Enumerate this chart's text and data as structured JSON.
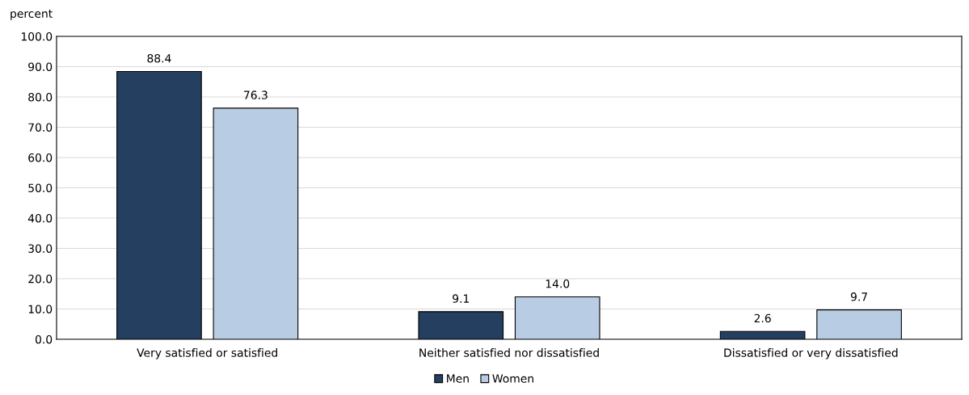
{
  "chart_data": {
    "type": "bar",
    "ylabel": "percent",
    "categories": [
      "Very satisfied or satisfied",
      "Neither satisfied nor dissatisfied",
      "Dissatisfied or very dissatisfied"
    ],
    "series": [
      {
        "name": "Men",
        "color": "#243f60",
        "values": [
          88.4,
          9.1,
          2.6
        ],
        "value_labels": [
          "88.4",
          "9.1",
          "2.6"
        ]
      },
      {
        "name": "Women",
        "color": "#b8cce4",
        "values": [
          76.3,
          14.0,
          9.7
        ],
        "value_labels": [
          "76.3",
          "14.0",
          "9.7"
        ]
      }
    ],
    "ylim": [
      0,
      100
    ],
    "yticks": [
      {
        "value": 0,
        "label": "0.0"
      },
      {
        "value": 10,
        "label": "10.0"
      },
      {
        "value": 20,
        "label": "20.0"
      },
      {
        "value": 30,
        "label": "30.0"
      },
      {
        "value": 40,
        "label": "40.0"
      },
      {
        "value": 50,
        "label": "50.0"
      },
      {
        "value": 60,
        "label": "60.0"
      },
      {
        "value": 70,
        "label": "70.0"
      },
      {
        "value": 80,
        "label": "80.0"
      },
      {
        "value": 90,
        "label": "90.0"
      },
      {
        "value": 100,
        "label": "100.0"
      }
    ],
    "grid": "y",
    "legend": "bottom"
  }
}
